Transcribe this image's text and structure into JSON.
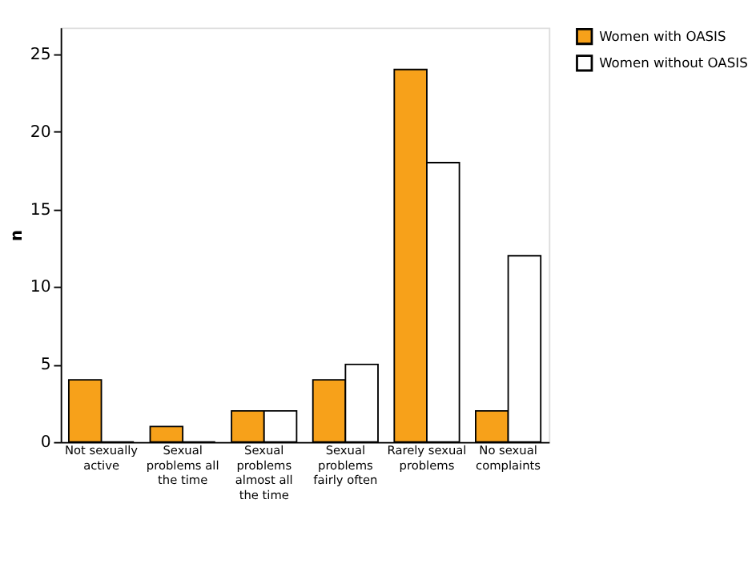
{
  "chart_data": {
    "type": "bar",
    "ylabel": "n",
    "categories": [
      "Not sexually active",
      "Sexual problems all the time",
      "Sexual problems almost all the time",
      "Sexual problems fairly often",
      "Rarely sexual problems",
      "No sexual complaints"
    ],
    "series": [
      {
        "name": "Women with OASIS",
        "color": "#f7a11a",
        "values": [
          4,
          1,
          2,
          4,
          24,
          2
        ]
      },
      {
        "name": "Women without OASIS",
        "color": "#ffffff",
        "values": [
          0,
          0,
          2,
          5,
          18,
          12
        ]
      }
    ],
    "ylim": [
      0,
      26.7
    ],
    "yticks": [
      0,
      5,
      10,
      15,
      20,
      25
    ],
    "grid": false,
    "legend": "top right"
  }
}
